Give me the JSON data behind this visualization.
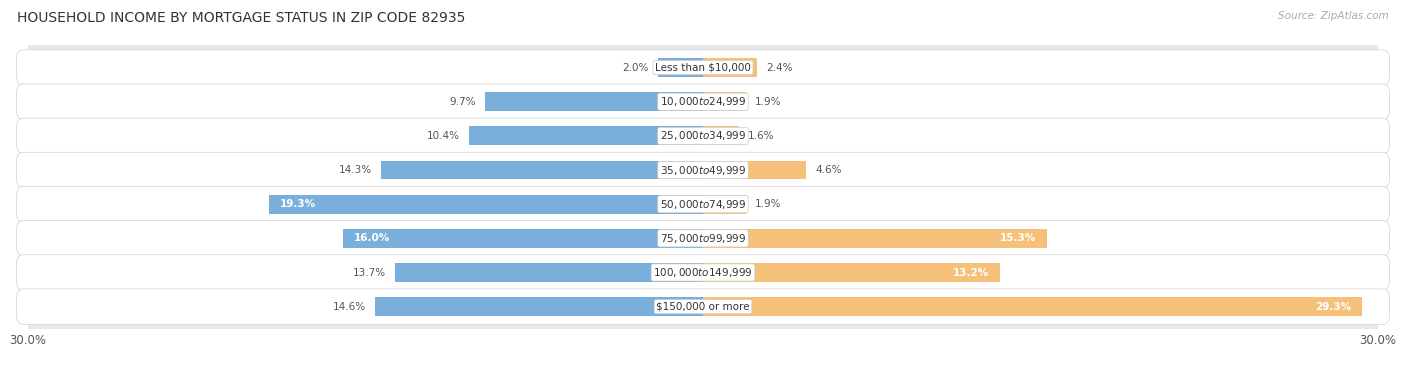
{
  "title": "HOUSEHOLD INCOME BY MORTGAGE STATUS IN ZIP CODE 82935",
  "source": "Source: ZipAtlas.com",
  "categories": [
    "Less than $10,000",
    "$10,000 to $24,999",
    "$25,000 to $34,999",
    "$35,000 to $49,999",
    "$50,000 to $74,999",
    "$75,000 to $99,999",
    "$100,000 to $149,999",
    "$150,000 or more"
  ],
  "without_mortgage": [
    2.0,
    9.7,
    10.4,
    14.3,
    19.3,
    16.0,
    13.7,
    14.6
  ],
  "with_mortgage": [
    2.4,
    1.9,
    1.6,
    4.6,
    1.9,
    15.3,
    13.2,
    29.3
  ],
  "color_without": "#7aaedb",
  "color_with": "#f5c07a",
  "xlim": 30.0,
  "title_fontsize": 10,
  "bar_height": 0.55
}
